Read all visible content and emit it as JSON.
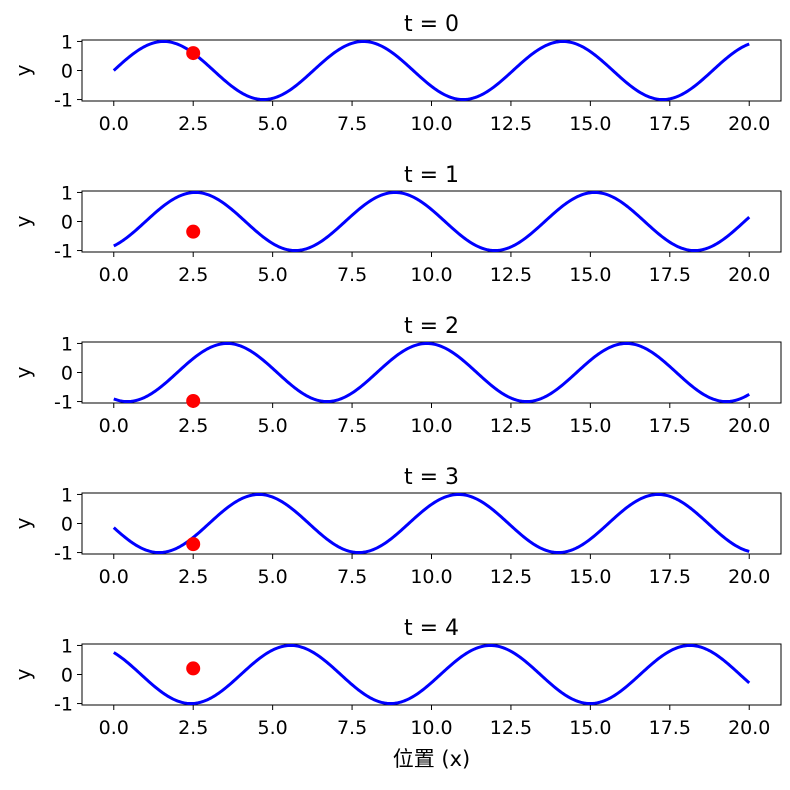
{
  "chart_data": [
    {
      "type": "line",
      "title": "t = 0",
      "xlabel": "",
      "ylabel": "y",
      "xlim": [
        -1,
        21
      ],
      "ylim": [
        -1.05,
        1.05
      ],
      "xticks": [
        "0.0",
        "2.5",
        "5.0",
        "7.5",
        "10.0",
        "12.5",
        "15.0",
        "17.5",
        "20.0"
      ],
      "yticks": [
        "1",
        "0",
        "-1"
      ],
      "wave": {
        "amplitude": 1,
        "wavenumber": 1,
        "phase": 0,
        "x_range": [
          0,
          20
        ]
      },
      "marker": {
        "x": 2.5,
        "y": 0.6
      },
      "colors": {
        "line": "#0000ff",
        "marker": "#ff0000"
      }
    },
    {
      "type": "line",
      "title": "t = 1",
      "xlabel": "",
      "ylabel": "y",
      "xlim": [
        -1,
        21
      ],
      "ylim": [
        -1.05,
        1.05
      ],
      "xticks": [
        "0.0",
        "2.5",
        "5.0",
        "7.5",
        "10.0",
        "12.5",
        "15.0",
        "17.5",
        "20.0"
      ],
      "yticks": [
        "1",
        "0",
        "-1"
      ],
      "wave": {
        "amplitude": 1,
        "wavenumber": 1,
        "phase": -1,
        "x_range": [
          0,
          20
        ]
      },
      "marker": {
        "x": 2.5,
        "y": -0.35
      },
      "colors": {
        "line": "#0000ff",
        "marker": "#ff0000"
      }
    },
    {
      "type": "line",
      "title": "t = 2",
      "xlabel": "",
      "ylabel": "y",
      "xlim": [
        -1,
        21
      ],
      "ylim": [
        -1.05,
        1.05
      ],
      "xticks": [
        "0.0",
        "2.5",
        "5.0",
        "7.5",
        "10.0",
        "12.5",
        "15.0",
        "17.5",
        "20.0"
      ],
      "yticks": [
        "1",
        "0",
        "-1"
      ],
      "wave": {
        "amplitude": 1,
        "wavenumber": 1,
        "phase": -2,
        "x_range": [
          0,
          20
        ]
      },
      "marker": {
        "x": 2.5,
        "y": -0.98
      },
      "colors": {
        "line": "#0000ff",
        "marker": "#ff0000"
      }
    },
    {
      "type": "line",
      "title": "t = 3",
      "xlabel": "",
      "ylabel": "y",
      "xlim": [
        -1,
        21
      ],
      "ylim": [
        -1.05,
        1.05
      ],
      "xticks": [
        "0.0",
        "2.5",
        "5.0",
        "7.5",
        "10.0",
        "12.5",
        "15.0",
        "17.5",
        "20.0"
      ],
      "yticks": [
        "1",
        "0",
        "-1"
      ],
      "wave": {
        "amplitude": 1,
        "wavenumber": 1,
        "phase": -3,
        "x_range": [
          0,
          20
        ]
      },
      "marker": {
        "x": 2.5,
        "y": -0.71
      },
      "colors": {
        "line": "#0000ff",
        "marker": "#ff0000"
      }
    },
    {
      "type": "line",
      "title": "t = 4",
      "xlabel": "位置 (x)",
      "ylabel": "y",
      "xlim": [
        -1,
        21
      ],
      "ylim": [
        -1.05,
        1.05
      ],
      "xticks": [
        "0.0",
        "2.5",
        "5.0",
        "7.5",
        "10.0",
        "12.5",
        "15.0",
        "17.5",
        "20.0"
      ],
      "yticks": [
        "1",
        "0",
        "-1"
      ],
      "wave": {
        "amplitude": 1,
        "wavenumber": 1,
        "phase": -4,
        "x_range": [
          0,
          20
        ]
      },
      "marker": {
        "x": 2.5,
        "y": 0.21
      },
      "colors": {
        "line": "#0000ff",
        "marker": "#ff0000"
      }
    }
  ]
}
